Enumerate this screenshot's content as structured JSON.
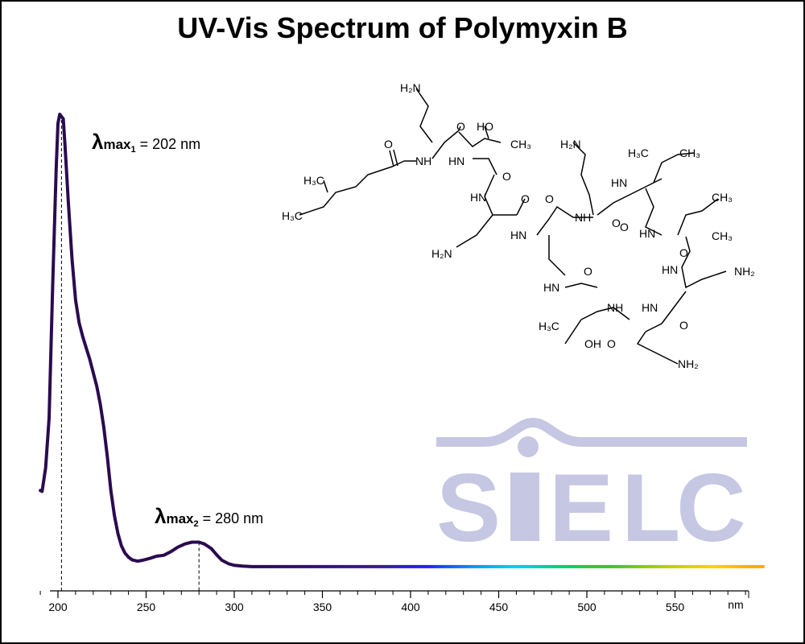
{
  "chart_data": {
    "type": "line",
    "title": "UV-Vis Spectrum of Polymyxin B",
    "xlabel": "nm",
    "ylabel": "",
    "xlim": [
      190,
      600
    ],
    "ylim": [
      0,
      1.0
    ],
    "grid": false,
    "x_ticks_major": [
      200,
      250,
      300,
      350,
      400,
      450,
      500,
      550
    ],
    "x_tick_labels": [
      "200",
      "250",
      "300",
      "350",
      "400",
      "450",
      "500",
      "550"
    ],
    "series": [
      {
        "x": [
          190,
          191,
          193,
          195,
          197,
          199,
          200,
          201,
          202,
          203,
          204,
          206,
          208,
          210,
          212,
          214,
          216,
          218,
          220,
          222,
          224,
          226,
          228,
          230,
          232,
          234,
          236,
          238,
          240,
          242,
          245,
          248,
          252,
          256,
          260,
          264,
          268,
          272,
          276,
          280,
          283,
          287,
          290,
          293,
          297,
          300,
          305,
          310,
          350,
          400,
          450,
          500,
          550,
          600
        ],
        "y": [
          0.17,
          0.168,
          0.22,
          0.33,
          0.62,
          0.88,
          0.98,
          1.0,
          0.995,
          0.99,
          0.93,
          0.8,
          0.68,
          0.59,
          0.54,
          0.51,
          0.485,
          0.46,
          0.43,
          0.4,
          0.36,
          0.31,
          0.245,
          0.17,
          0.115,
          0.075,
          0.048,
          0.032,
          0.023,
          0.017,
          0.014,
          0.016,
          0.02,
          0.025,
          0.027,
          0.035,
          0.045,
          0.052,
          0.056,
          0.056,
          0.052,
          0.042,
          0.028,
          0.016,
          0.008,
          0.005,
          0.003,
          0.002,
          0.002,
          0.002,
          0.002,
          0.002,
          0.002,
          0.002
        ]
      }
    ],
    "annotations": [
      {
        "x": 202,
        "label_symbol": "λ",
        "label_main": "max",
        "label_sub": "1",
        "label_rest": " = 202 nm"
      },
      {
        "x": 280,
        "label_symbol": "λ",
        "label_main": "max",
        "label_sub": "2",
        "label_rest": " = 280 nm"
      }
    ],
    "line_color_start": "#2a0b4f",
    "spectrum_colors": [
      "#2a0b4f",
      "#2a0b4f",
      "#3a1a8a",
      "#2020ff",
      "#0090ff",
      "#00ccff",
      "#00d070",
      "#40c020",
      "#b8d000",
      "#ffd000",
      "#ffaa00"
    ]
  },
  "watermark": {
    "text": "SiELC",
    "color": "#c5c7e3"
  },
  "molecule": {
    "name": "Polymyxin B",
    "labels": {
      "h2n_top": "H₂N",
      "nh1": "NH",
      "o1": "O",
      "ho1": "HO",
      "ch3_1": "CH₃",
      "h3c_chain": "H₃C",
      "h3c_chain2": "H₃C",
      "o_acyl": "O",
      "hn1": "HN",
      "o2": "O",
      "hn2": "HN",
      "o3": "O",
      "h2n_left": "H₂N",
      "hn3": "HN",
      "o4": "O",
      "nh2": "NH",
      "h2n_mid": "H₂N",
      "o5": "O",
      "h3c_leu1": "H₃C",
      "ch3_leu1": "CH₃",
      "hn_leu1": "HN",
      "o6": "O",
      "ch3_leu2a": "CH₃",
      "ch3_leu2b": "CH₃",
      "hn_leu2": "HN",
      "o7": "O",
      "hn_dab": "HN",
      "nh2_right": "NH₂",
      "hn_ring": "HN",
      "o8": "O",
      "nh_thr": "NH",
      "h3c_thr": "H₃C",
      "oh_thr": "OH",
      "o9": "O",
      "hn_dab2": "HN",
      "o10": "O",
      "nh2_bottom": "NH₂"
    }
  }
}
